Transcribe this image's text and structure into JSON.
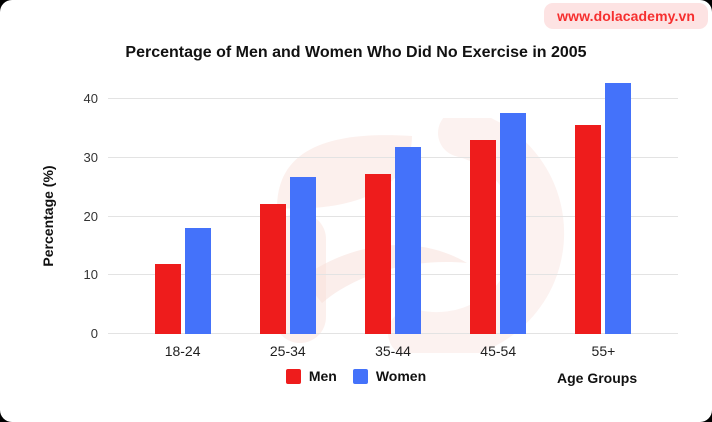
{
  "badge": {
    "url": "www.dolacademy.vn",
    "text_color": "#f62f2f",
    "bg_color": "#fde3e3"
  },
  "chart_data": {
    "type": "bar",
    "title": "Percentage of Men and Women Who Did No Exercise in 2005",
    "xlabel": "Age Groups",
    "ylabel": "Percentage (%)",
    "categories": [
      "18-24",
      "25-34",
      "35-44",
      "45-54",
      "55+"
    ],
    "series": [
      {
        "name": "Men",
        "color": "#ee1c1c",
        "values": [
          12,
          22.2,
          27.3,
          33,
          35.6
        ]
      },
      {
        "name": "Women",
        "color": "#4472fa",
        "values": [
          18.1,
          26.8,
          31.9,
          37.6,
          42.8
        ]
      }
    ],
    "yticks": [
      0,
      10,
      20,
      30,
      40
    ],
    "ylim": [
      0,
      45
    ],
    "grid": true,
    "gridline_color": "#e3e3e3",
    "legend_position": "bottom"
  }
}
